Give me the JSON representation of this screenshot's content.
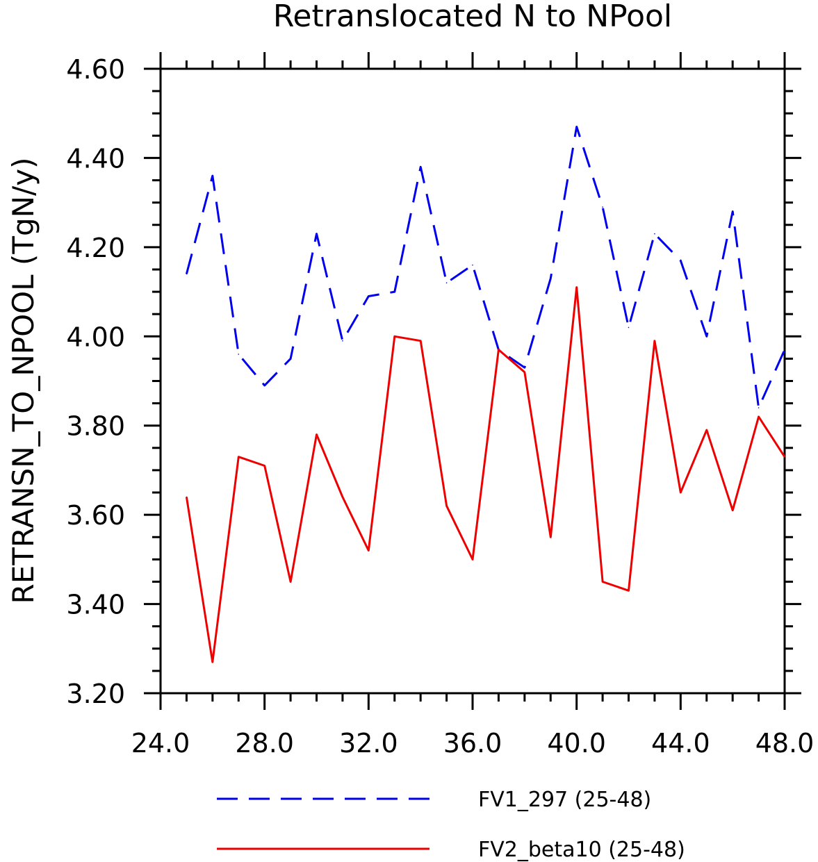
{
  "chart_data": {
    "type": "line",
    "title": "Retranslocated N to NPool",
    "xlabel": "",
    "ylabel": "RETRANSN_TO_NPOOL  (TgN/y)",
    "xlim": [
      24.0,
      48.0
    ],
    "ylim": [
      3.2,
      4.6
    ],
    "x_ticks": [
      "24.0",
      "28.0",
      "32.0",
      "36.0",
      "40.0",
      "44.0",
      "48.0"
    ],
    "y_ticks": [
      "3.20",
      "3.40",
      "3.60",
      "3.80",
      "4.00",
      "4.20",
      "4.40",
      "4.60"
    ],
    "grid": false,
    "legend_position": "bottom",
    "x": [
      25,
      26,
      27,
      28,
      29,
      30,
      31,
      32,
      33,
      34,
      35,
      36,
      37,
      38,
      39,
      40,
      41,
      42,
      43,
      44,
      45,
      46,
      47,
      48
    ],
    "series": [
      {
        "name": "FV1_297 (25-48)",
        "color": "#0000ee",
        "style": "dashed",
        "values": [
          4.14,
          4.36,
          3.96,
          3.89,
          3.95,
          4.23,
          3.99,
          4.09,
          4.1,
          4.38,
          4.12,
          4.16,
          3.97,
          3.93,
          4.13,
          4.47,
          4.29,
          4.02,
          4.23,
          4.17,
          4.0,
          4.28,
          3.84,
          3.97
        ]
      },
      {
        "name": "FV2_beta10 (25-48)",
        "color": "#ee0000",
        "style": "solid",
        "values": [
          3.64,
          3.27,
          3.73,
          3.71,
          3.45,
          3.78,
          3.64,
          3.52,
          4.0,
          3.99,
          3.62,
          3.5,
          3.97,
          3.92,
          3.55,
          4.11,
          3.45,
          3.43,
          3.99,
          3.65,
          3.79,
          3.61,
          3.82,
          3.73
        ]
      }
    ]
  }
}
